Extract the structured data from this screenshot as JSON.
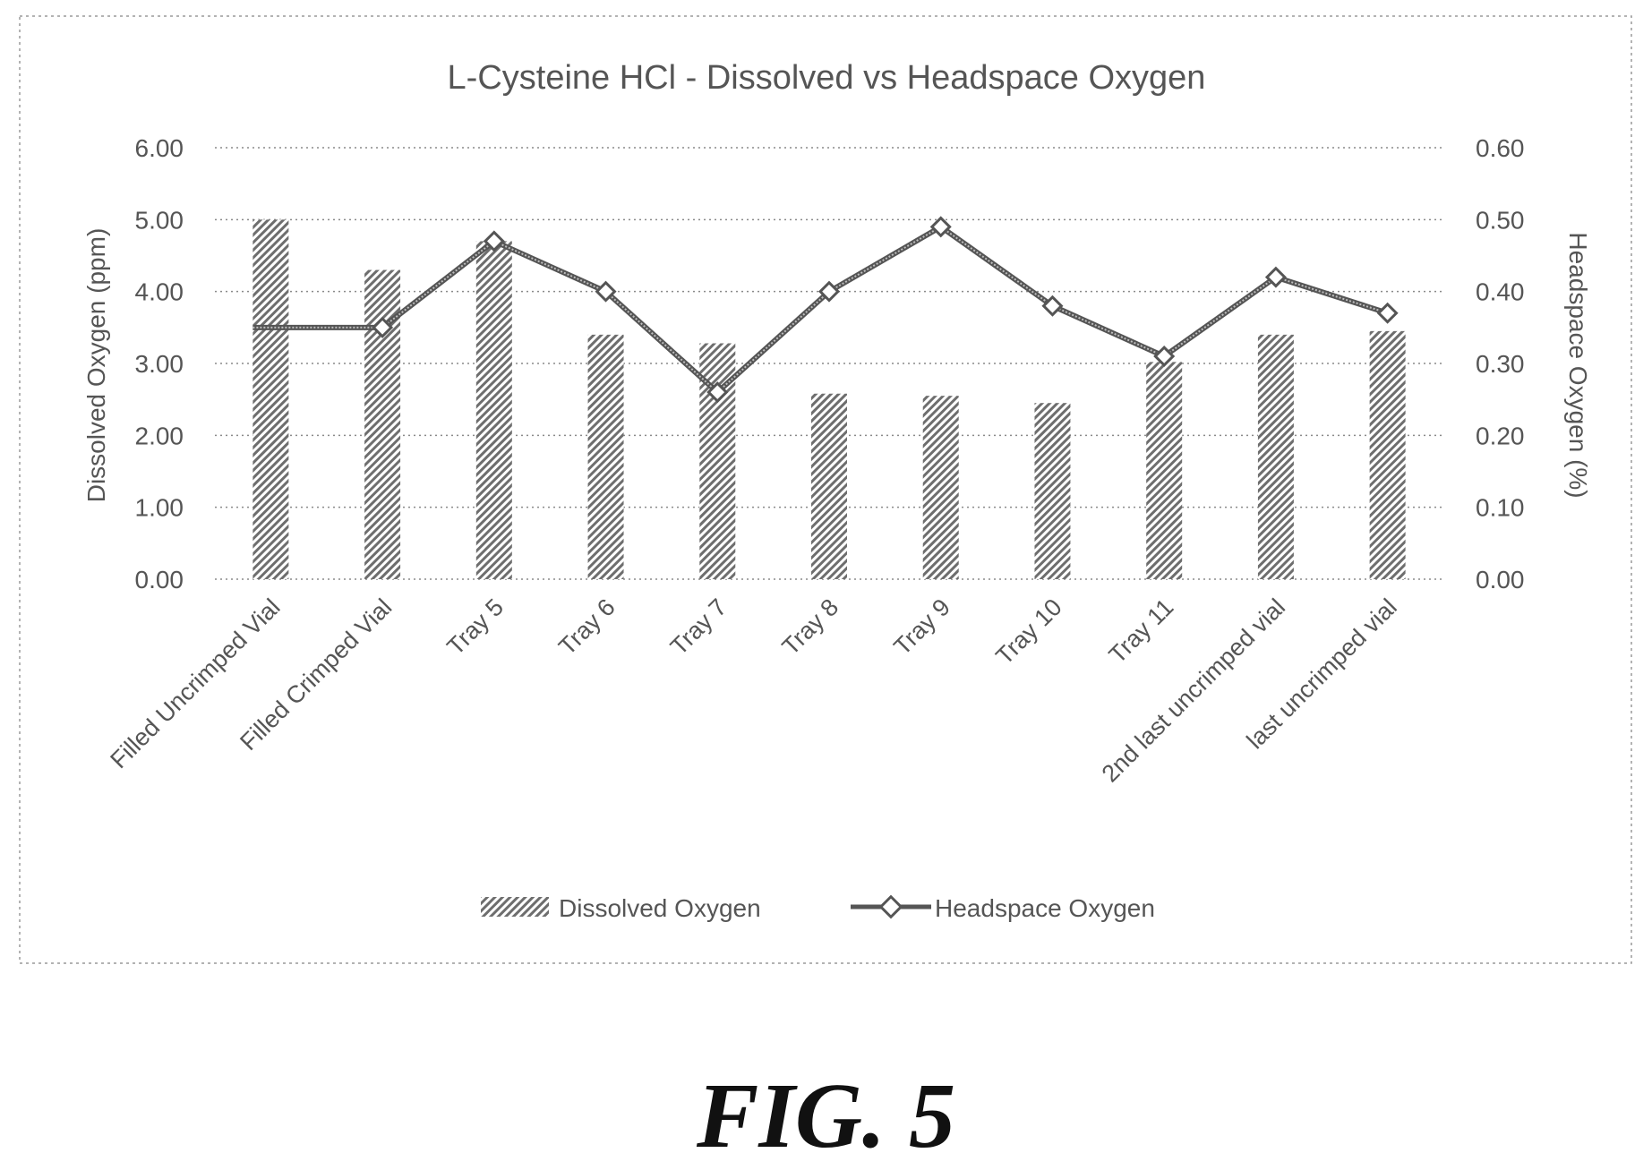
{
  "figure": {
    "caption": "FIG. 5"
  },
  "colors": {
    "ink": "#555555",
    "bar_fill": "#6e6e6e",
    "line": "#555555",
    "grid": "#8a8a8a",
    "frame": "#9a9a9a"
  },
  "chart_data": {
    "type": "bar",
    "title": "L-Cysteine HCl - Dissolved vs Headspace Oxygen",
    "categories": [
      "Filled Uncrimped Vial",
      "Filled Crimped Vial",
      "Tray 5",
      "Tray 6",
      "Tray 7",
      "Tray 8",
      "Tray 9",
      "Tray 10",
      "Tray 11",
      "2nd last uncrimped vial",
      "last uncrimped vial"
    ],
    "ylabel": "Dissolved Oxygen (ppm)",
    "ylim": [
      0,
      6
    ],
    "yticks": [
      "0.00",
      "1.00",
      "2.00",
      "3.00",
      "4.00",
      "5.00",
      "6.00"
    ],
    "y2label": "Headspace Oxygen (%)",
    "y2lim": [
      0,
      0.6
    ],
    "y2ticks": [
      "0.00",
      "0.10",
      "0.20",
      "0.30",
      "0.40",
      "0.50",
      "0.60"
    ],
    "grid": true,
    "legend_position": "bottom",
    "series": [
      {
        "name": "Dissolved Oxygen",
        "type": "bar",
        "axis": "left",
        "values": [
          5.0,
          4.3,
          4.7,
          3.4,
          3.28,
          2.58,
          2.55,
          2.45,
          3.02,
          3.4,
          3.45
        ]
      },
      {
        "name": "Headspace Oxygen",
        "type": "line",
        "axis": "right",
        "values": [
          0.35,
          0.35,
          0.47,
          0.4,
          0.26,
          0.4,
          0.49,
          0.38,
          0.31,
          0.42,
          0.37
        ]
      }
    ]
  }
}
